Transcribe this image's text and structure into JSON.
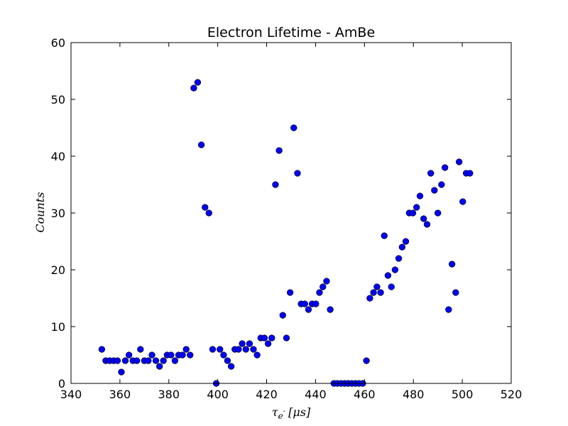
{
  "chart_data": {
    "type": "scatter",
    "title": "Electron Lifetime - AmBe",
    "xlabel": "τ_{e^-} [μs]",
    "ylabel": "Counts",
    "xlim": [
      340,
      520
    ],
    "ylim": [
      0,
      60
    ],
    "xticks": [
      340,
      360,
      380,
      400,
      420,
      440,
      460,
      480,
      500,
      520
    ],
    "yticks": [
      0,
      10,
      20,
      30,
      40,
      50,
      60
    ],
    "grid": false,
    "marker_color": "#0000ff",
    "marker_edge": "#000000",
    "points": [
      [
        352.6,
        6
      ],
      [
        354.2,
        4
      ],
      [
        355.8,
        4
      ],
      [
        357.4,
        4
      ],
      [
        359.0,
        4
      ],
      [
        360.6,
        2
      ],
      [
        362.2,
        4
      ],
      [
        363.7,
        5
      ],
      [
        365.3,
        4
      ],
      [
        366.9,
        4
      ],
      [
        368.4,
        6
      ],
      [
        370.0,
        4
      ],
      [
        371.6,
        4
      ],
      [
        373.1,
        5
      ],
      [
        374.7,
        4
      ],
      [
        376.2,
        3
      ],
      [
        377.8,
        4
      ],
      [
        379.3,
        5
      ],
      [
        380.9,
        5
      ],
      [
        382.5,
        4
      ],
      [
        384.0,
        5
      ],
      [
        385.6,
        5
      ],
      [
        387.1,
        6
      ],
      [
        388.7,
        5
      ],
      [
        390.2,
        52
      ],
      [
        391.8,
        53
      ],
      [
        393.3,
        42
      ],
      [
        394.8,
        31
      ],
      [
        396.4,
        30
      ],
      [
        397.9,
        6
      ],
      [
        399.4,
        0
      ],
      [
        400.9,
        6
      ],
      [
        402.4,
        5
      ],
      [
        404.0,
        4
      ],
      [
        405.5,
        3
      ],
      [
        407.0,
        6
      ],
      [
        408.5,
        6
      ],
      [
        410.0,
        7
      ],
      [
        411.5,
        6
      ],
      [
        413.0,
        7
      ],
      [
        414.6,
        6
      ],
      [
        416.1,
        5
      ],
      [
        417.6,
        8
      ],
      [
        419.1,
        8
      ],
      [
        420.6,
        7
      ],
      [
        422.1,
        8
      ],
      [
        423.6,
        35
      ],
      [
        425.1,
        41
      ],
      [
        426.6,
        12
      ],
      [
        428.1,
        8
      ],
      [
        429.6,
        16
      ],
      [
        431.1,
        45
      ],
      [
        432.6,
        37
      ],
      [
        434.1,
        14
      ],
      [
        435.6,
        14
      ],
      [
        437.1,
        13
      ],
      [
        438.6,
        14
      ],
      [
        440.1,
        14
      ],
      [
        441.6,
        16
      ],
      [
        443.0,
        17
      ],
      [
        444.5,
        18
      ],
      [
        446.0,
        13
      ],
      [
        447.5,
        0
      ],
      [
        448.9,
        0
      ],
      [
        450.4,
        0
      ],
      [
        451.9,
        0
      ],
      [
        453.3,
        0
      ],
      [
        454.8,
        0
      ],
      [
        456.3,
        0
      ],
      [
        457.8,
        0
      ],
      [
        459.3,
        0
      ],
      [
        460.8,
        4
      ],
      [
        462.2,
        15
      ],
      [
        463.7,
        16
      ],
      [
        465.1,
        17
      ],
      [
        466.6,
        16
      ],
      [
        468.1,
        26
      ],
      [
        469.6,
        19
      ],
      [
        471.0,
        17
      ],
      [
        472.5,
        20
      ],
      [
        474.0,
        22
      ],
      [
        475.4,
        24
      ],
      [
        476.9,
        25
      ],
      [
        478.3,
        30
      ],
      [
        479.8,
        30
      ],
      [
        481.3,
        31
      ],
      [
        482.7,
        33
      ],
      [
        484.2,
        29
      ],
      [
        485.6,
        28
      ],
      [
        487.1,
        37
      ],
      [
        488.6,
        34
      ],
      [
        490.0,
        30
      ],
      [
        491.5,
        35
      ],
      [
        492.9,
        38
      ],
      [
        494.4,
        13
      ],
      [
        495.8,
        21
      ],
      [
        497.3,
        16
      ],
      [
        498.7,
        39
      ],
      [
        500.2,
        32
      ],
      [
        501.6,
        37
      ],
      [
        503.1,
        37
      ]
    ]
  }
}
